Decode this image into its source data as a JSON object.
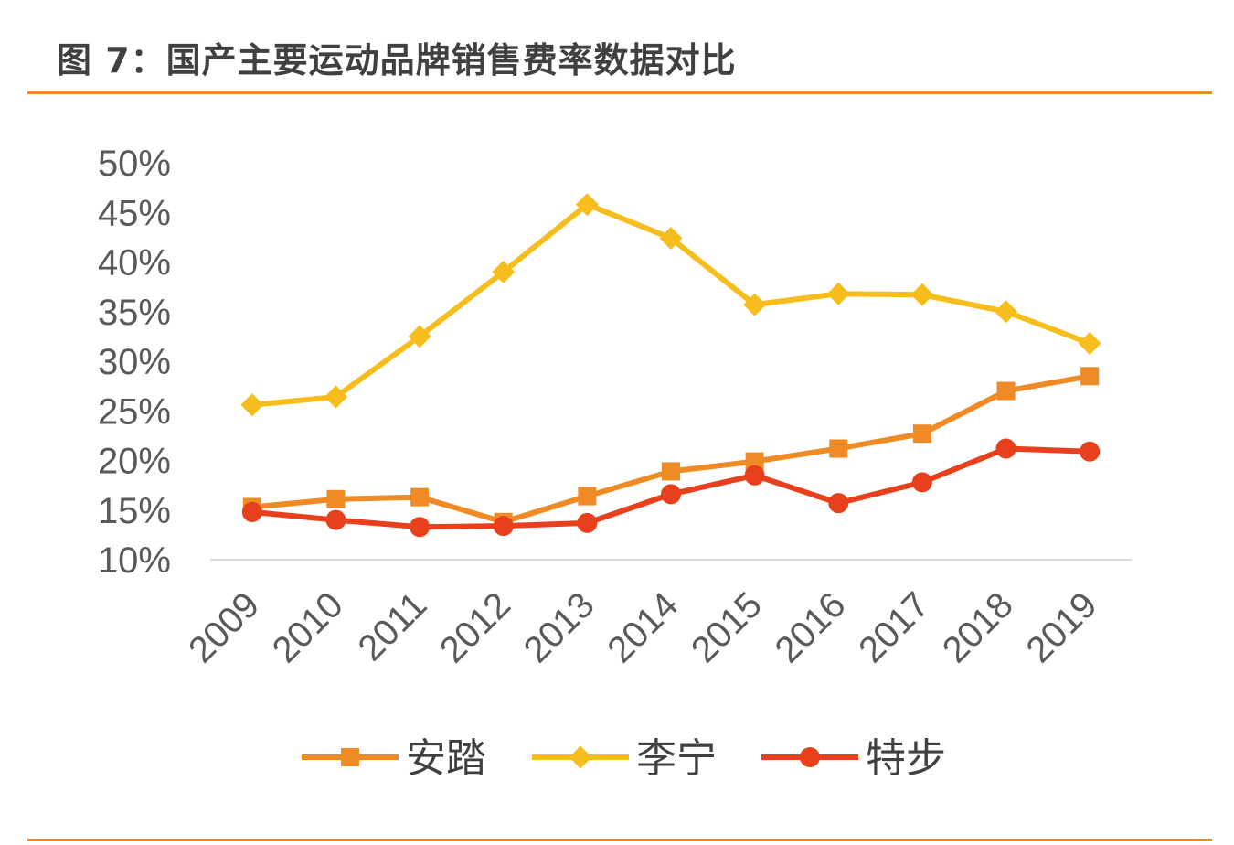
{
  "figure": {
    "title": "图 7：国产主要运动品牌销售费率数据对比"
  },
  "colors": {
    "rule": "#e98a2c",
    "axis": "#d9d9d9",
    "tick_text": "#595959"
  },
  "chart_data": {
    "type": "line",
    "title": "图 7：国产主要运动品牌销售费率数据对比",
    "xlabel": "",
    "ylabel": "",
    "categories": [
      "2009",
      "2010",
      "2011",
      "2012",
      "2013",
      "2014",
      "2015",
      "2016",
      "2017",
      "2018",
      "2019"
    ],
    "ylim": [
      0.1,
      0.5
    ],
    "yticks": [
      0.1,
      0.15,
      0.2,
      0.25,
      0.3,
      0.35,
      0.4,
      0.45,
      0.5
    ],
    "ytick_labels": [
      "10%",
      "15%",
      "20%",
      "25%",
      "30%",
      "35%",
      "40%",
      "45%",
      "50%"
    ],
    "grid": false,
    "legend_position": "bottom",
    "series": [
      {
        "name": "安踏",
        "color": "#f08a24",
        "marker": "square",
        "values": [
          0.153,
          0.161,
          0.163,
          0.138,
          0.164,
          0.189,
          0.199,
          0.212,
          0.227,
          0.27,
          0.285
        ]
      },
      {
        "name": "李宁",
        "color": "#f7bd1c",
        "marker": "diamond",
        "values": [
          0.256,
          0.264,
          0.325,
          0.39,
          0.458,
          0.424,
          0.357,
          0.368,
          0.367,
          0.35,
          0.318
        ]
      },
      {
        "name": "特步",
        "color": "#e8401c",
        "marker": "circle",
        "values": [
          0.148,
          0.14,
          0.133,
          0.134,
          0.137,
          0.166,
          0.185,
          0.157,
          0.178,
          0.212,
          0.209
        ]
      }
    ]
  }
}
